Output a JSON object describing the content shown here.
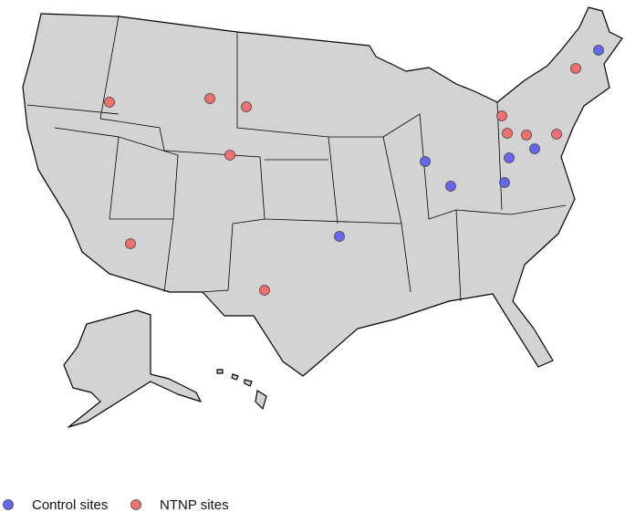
{
  "map": {
    "legend": [
      {
        "label": "Control sites",
        "color": "#6666ee"
      },
      {
        "label": "NTNP sites",
        "color": "#f07070"
      }
    ]
  }
}
